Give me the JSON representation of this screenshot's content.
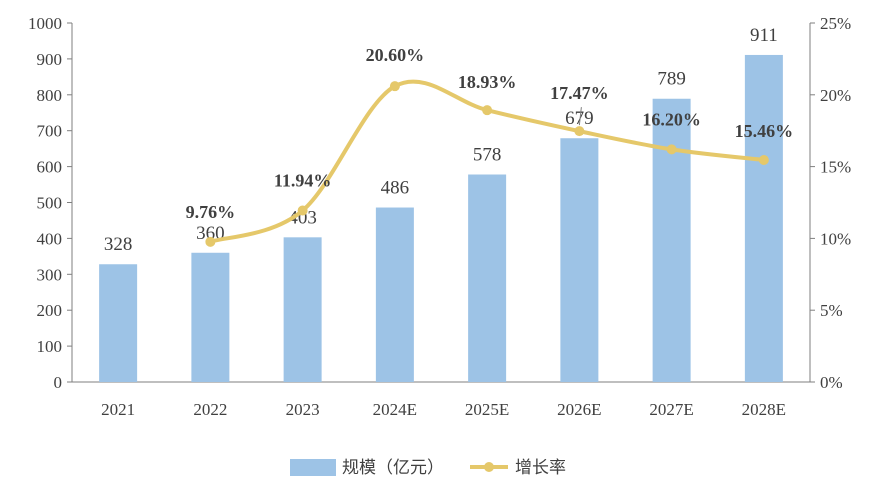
{
  "chart_data": {
    "type": "bar",
    "categories": [
      "2021",
      "2022",
      "2023",
      "2024E",
      "2025E",
      "2026E",
      "2027E",
      "2028E"
    ],
    "series": [
      {
        "name": "规模（亿元）",
        "type": "bar",
        "axis": "left",
        "values": [
          328,
          360,
          403,
          486,
          578,
          679,
          789,
          911
        ],
        "labels": [
          "328",
          "360",
          "403",
          "486",
          "578",
          "679",
          "789",
          "911"
        ],
        "color": "#9dc3e6"
      },
      {
        "name": "增长率",
        "type": "line",
        "axis": "right",
        "smooth": true,
        "values": [
          null,
          9.76,
          11.94,
          20.6,
          18.93,
          17.47,
          16.2,
          15.46
        ],
        "labels": [
          "",
          "9.76%",
          "11.94%",
          "20.60%",
          "18.93%",
          "17.47%",
          "16.20%",
          "15.46%"
        ],
        "color": "#e5c86a"
      }
    ],
    "y_left": {
      "lim": [
        0,
        1000
      ],
      "ticks": [
        "0",
        "100",
        "200",
        "300",
        "400",
        "500",
        "600",
        "700",
        "800",
        "900",
        "1000"
      ]
    },
    "y_right": {
      "lim": [
        0,
        25
      ],
      "ticks": [
        "0%",
        "5%",
        "10%",
        "15%",
        "20%",
        "25%"
      ]
    },
    "grid": false,
    "legend": "bottom-center"
  }
}
